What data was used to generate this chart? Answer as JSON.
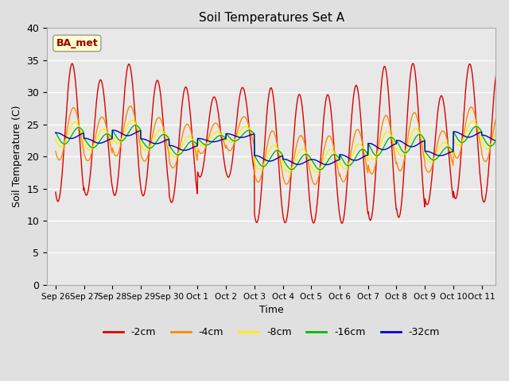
{
  "title": "Soil Temperatures Set A",
  "xlabel": "Time",
  "ylabel": "Soil Temperature (C)",
  "ylim": [
    0,
    40
  ],
  "yticks": [
    0,
    5,
    10,
    15,
    20,
    25,
    30,
    35,
    40
  ],
  "num_days": 15.5,
  "xtick_labels": [
    "Sep 26",
    "Sep 27",
    "Sep 28",
    "Sep 29",
    "Sep 30",
    "Oct 1",
    "Oct 2",
    "Oct 3",
    "Oct 4",
    "Oct 5",
    "Oct 6",
    "Oct 7",
    "Oct 8",
    "Oct 9",
    "Oct 10",
    "Oct 11"
  ],
  "series": [
    {
      "label": "-2cm",
      "color": "#dd0000"
    },
    {
      "label": "-4cm",
      "color": "#ff8800"
    },
    {
      "label": "-8cm",
      "color": "#ffee00"
    },
    {
      "label": "-16cm",
      "color": "#00bb00"
    },
    {
      "label": "-32cm",
      "color": "#0000cc"
    }
  ],
  "annotation_text": "BA_met",
  "bg_color": "#e8e8e8",
  "fig_facecolor": "#e0e0e0"
}
